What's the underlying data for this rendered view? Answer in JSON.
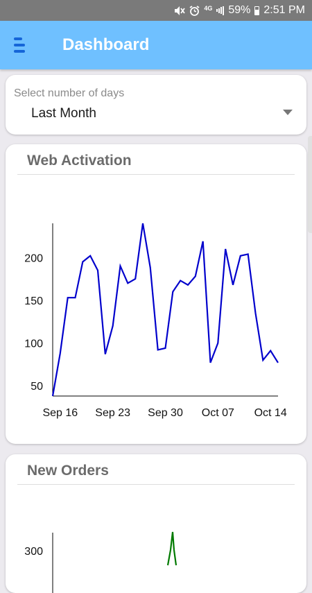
{
  "status_bar": {
    "icons": [
      "mute-icon",
      "alarm-icon",
      "network-4g-icon",
      "signal-icon"
    ],
    "network_label": "4G",
    "battery_percent": "59%",
    "battery_level": 0.59,
    "time": "2:51 PM"
  },
  "header": {
    "menu_icon": "hamburger-menu-icon",
    "title": "Dashboard"
  },
  "day_selector": {
    "label": "Select number of days",
    "value": "Last Month",
    "arrow_icon": "dropdown-arrow-icon"
  },
  "cards": [
    {
      "title": "Web Activation"
    },
    {
      "title": "New Orders"
    }
  ],
  "chart_data": [
    {
      "type": "line",
      "title": "Web Activation",
      "xlabel": "",
      "ylabel": "",
      "x": [
        "Sep 15",
        "Sep 16",
        "Sep 17",
        "Sep 18",
        "Sep 19",
        "Sep 20",
        "Sep 21",
        "Sep 22",
        "Sep 23",
        "Sep 24",
        "Sep 25",
        "Sep 26",
        "Sep 27",
        "Sep 28",
        "Sep 29",
        "Sep 30",
        "Oct 01",
        "Oct 02",
        "Oct 03",
        "Oct 04",
        "Oct 05",
        "Oct 06",
        "Oct 07",
        "Oct 08",
        "Oct 09",
        "Oct 10",
        "Oct 11",
        "Oct 12",
        "Oct 13",
        "Oct 14",
        "Oct 15"
      ],
      "x_tick_labels": [
        "Sep 16",
        "Sep 23",
        "Sep 30",
        "Oct 07",
        "Oct 14"
      ],
      "x_tick_index": [
        1,
        8,
        15,
        22,
        29
      ],
      "y_ticks": [
        50,
        100,
        150,
        200
      ],
      "ylim": [
        38,
        240
      ],
      "series": [
        {
          "color": "#0000cc",
          "values": [
            38,
            88,
            153,
            153,
            195,
            202,
            185,
            87,
            120,
            190,
            170,
            175,
            240,
            188,
            92,
            94,
            160,
            173,
            168,
            178,
            219,
            77,
            100,
            210,
            168,
            202,
            204,
            135,
            80,
            91,
            77
          ]
        }
      ],
      "grid": false
    },
    {
      "type": "line",
      "title": "New Orders",
      "xlabel": "",
      "ylabel": "",
      "y_ticks": [
        300
      ],
      "visible_y_ticks": [
        300
      ],
      "series": [
        {
          "color": "#007a00",
          "values": []
        }
      ],
      "grid": false
    }
  ]
}
